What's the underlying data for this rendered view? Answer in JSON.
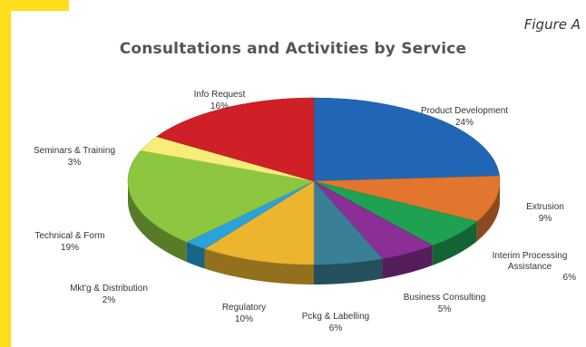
{
  "figure_label": "Figure A",
  "chart_data": {
    "type": "pie",
    "title": "Consultations and Activities by Service",
    "slices": [
      {
        "label": "Product Development",
        "value": 24,
        "display": "24%",
        "color": "#2166b5"
      },
      {
        "label": "Extrusion",
        "value": 9,
        "display": "9%",
        "color": "#e2762e"
      },
      {
        "label": "Interim Processing Assistance",
        "value": 6,
        "display": "6%",
        "color": "#1ea251"
      },
      {
        "label": "Business Consulting",
        "value": 5,
        "display": "5%",
        "color": "#8b2f96"
      },
      {
        "label": "Pckg & Labelling",
        "value": 6,
        "display": "6%",
        "color": "#3a7f96"
      },
      {
        "label": "Regulatory",
        "value": 10,
        "display": "10%",
        "color": "#ecb42f"
      },
      {
        "label": "Mkt'g & Distribution",
        "value": 2,
        "display": "2%",
        "color": "#2aa2dc"
      },
      {
        "label": "Technical & Form",
        "value": 19,
        "display": "19%",
        "color": "#8dc63f"
      },
      {
        "label": "Seminars & Training",
        "value": 3,
        "display": "3%",
        "color": "#f6ee78"
      },
      {
        "label": "Info Request",
        "value": 16,
        "display": "16%",
        "color": "#cf2027"
      }
    ]
  }
}
